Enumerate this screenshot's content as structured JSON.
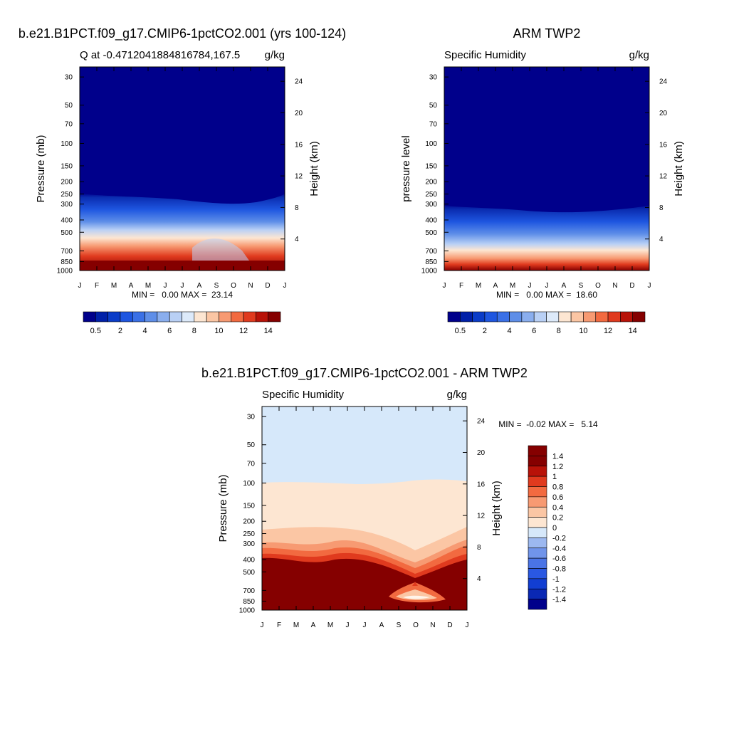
{
  "figure": {
    "panels": [
      {
        "id": "model",
        "main_title": "b.e21.B1PCT.f09_g17.CMIP6-1pctCO2.001 (yrs 100-124)",
        "left_label": "Q at -0.4712041884816784,167.5",
        "right_label": "g/kg",
        "ylabel": "Pressure (mb)",
        "ylabel_right": "Height (km)",
        "stats": "MIN =   0.00 MAX =  23.14"
      },
      {
        "id": "obs",
        "main_title": "ARM TWP2",
        "left_label": "Specific Humidity",
        "right_label": "g/kg",
        "ylabel": "pressure level",
        "ylabel_right": "Height (km)",
        "stats": "MIN =   0.00 MAX =  18.60"
      },
      {
        "id": "diff",
        "main_title": "b.e21.B1PCT.f09_g17.CMIP6-1pctCO2.001 - ARM TWP2",
        "left_label": "Specific Humidity",
        "right_label": "g/kg",
        "ylabel": "Pressure (mb)",
        "ylabel_right": "Height (km)",
        "stats": "MIN =  -0.02 MAX =   5.14"
      }
    ]
  },
  "chart_data": [
    {
      "type": "heatmap",
      "title": "b.e21.B1PCT.f09_g17.CMIP6-1pctCO2.001 (yrs 100-124)",
      "subtitle": "Q at -0.4712041884816784,167.5",
      "units": "g/kg",
      "xlabel": "",
      "ylabel": "Pressure (mb)",
      "ylabel_right": "Height (km)",
      "x_ticks": [
        "J",
        "F",
        "M",
        "A",
        "M",
        "J",
        "J",
        "A",
        "S",
        "O",
        "N",
        "D",
        "J"
      ],
      "y_ticks": [
        "30",
        "50",
        "70",
        "100",
        "150",
        "200",
        "250",
        "300",
        "400",
        "500",
        "700",
        "850",
        "1000"
      ],
      "y_scale": "log",
      "ylim": [
        1000,
        25
      ],
      "y_right_ticks": [
        "24",
        "20",
        "16",
        "12",
        "8",
        "4"
      ],
      "levels": [
        0.5,
        1,
        2,
        3,
        4,
        5,
        6,
        7,
        8,
        9,
        10,
        11,
        12,
        13,
        14
      ],
      "colorbar_labels": [
        "0.5",
        "2",
        "4",
        "6",
        "8",
        "10",
        "12",
        "14"
      ],
      "colors": [
        "#00008b",
        "#0020a8",
        "#0a3cc8",
        "#1e56e0",
        "#3a70e6",
        "#5e8ee8",
        "#8aaeee",
        "#b9d0f5",
        "#ddeafa",
        "#fde6d2",
        "#fbc6a4",
        "#f79a72",
        "#f26a40",
        "#e03a1e",
        "#b81208",
        "#850000"
      ],
      "approx_profile": [
        {
          "p": 1000,
          "q": 19
        },
        {
          "p": 850,
          "q": 14
        },
        {
          "p": 700,
          "q": 8
        },
        {
          "p": 500,
          "q": 3.5
        },
        {
          "p": 400,
          "q": 1.8
        },
        {
          "p": 300,
          "q": 0.6
        },
        {
          "p": 250,
          "q": 0.3
        },
        {
          "p": 100,
          "q": 0.01
        },
        {
          "p": 30,
          "q": 0
        }
      ],
      "min": 0.0,
      "max": 23.14
    },
    {
      "type": "heatmap",
      "title": "ARM TWP2",
      "subtitle": "Specific Humidity",
      "units": "g/kg",
      "xlabel": "",
      "ylabel": "pressure level",
      "ylabel_right": "Height (km)",
      "x_ticks": [
        "J",
        "F",
        "M",
        "A",
        "M",
        "J",
        "J",
        "A",
        "S",
        "O",
        "N",
        "D",
        "J"
      ],
      "y_ticks": [
        "30",
        "50",
        "70",
        "100",
        "150",
        "200",
        "250",
        "300",
        "400",
        "500",
        "700",
        "850",
        "1000"
      ],
      "y_scale": "log",
      "ylim": [
        1000,
        25
      ],
      "y_right_ticks": [
        "24",
        "20",
        "16",
        "12",
        "8",
        "4"
      ],
      "levels": [
        0.5,
        1,
        2,
        3,
        4,
        5,
        6,
        7,
        8,
        9,
        10,
        11,
        12,
        13,
        14
      ],
      "colorbar_labels": [
        "0.5",
        "2",
        "4",
        "6",
        "8",
        "10",
        "12",
        "14"
      ],
      "colors": [
        "#00008b",
        "#0020a8",
        "#0a3cc8",
        "#1e56e0",
        "#3a70e6",
        "#5e8ee8",
        "#8aaeee",
        "#b9d0f5",
        "#ddeafa",
        "#fde6d2",
        "#fbc6a4",
        "#f79a72",
        "#f26a40",
        "#e03a1e",
        "#b81208",
        "#850000"
      ],
      "approx_profile": [
        {
          "p": 1000,
          "q": 17
        },
        {
          "p": 850,
          "q": 12
        },
        {
          "p": 700,
          "q": 6.5
        },
        {
          "p": 500,
          "q": 2.5
        },
        {
          "p": 400,
          "q": 1.2
        },
        {
          "p": 300,
          "q": 0.4
        },
        {
          "p": 250,
          "q": 0.2
        },
        {
          "p": 100,
          "q": 0.01
        },
        {
          "p": 30,
          "q": 0
        }
      ],
      "min": 0.0,
      "max": 18.6
    },
    {
      "type": "heatmap",
      "title": "b.e21.B1PCT.f09_g17.CMIP6-1pctCO2.001 - ARM TWP2",
      "subtitle": "Specific Humidity",
      "units": "g/kg",
      "xlabel": "",
      "ylabel": "Pressure (mb)",
      "ylabel_right": "Height (km)",
      "x_ticks": [
        "J",
        "F",
        "M",
        "A",
        "M",
        "J",
        "J",
        "A",
        "S",
        "O",
        "N",
        "D",
        "J"
      ],
      "y_ticks": [
        "30",
        "50",
        "70",
        "100",
        "150",
        "200",
        "250",
        "300",
        "400",
        "500",
        "700",
        "850",
        "1000"
      ],
      "y_scale": "log",
      "ylim": [
        1000,
        25
      ],
      "y_right_ticks": [
        "24",
        "20",
        "16",
        "12",
        "8",
        "4"
      ],
      "levels": [
        -1.4,
        -1.2,
        -1,
        -0.8,
        -0.6,
        -0.4,
        -0.2,
        0,
        0.2,
        0.4,
        0.6,
        0.8,
        1,
        1.2,
        1.4
      ],
      "colorbar_labels": [
        "1.4",
        "1.2",
        "1",
        "0.8",
        "0.6",
        "0.4",
        "0.2",
        "0",
        "-0.2",
        "-0.4",
        "-0.6",
        "-0.8",
        "-1",
        "-1.2",
        "-1.4"
      ],
      "colors": [
        "#00008b",
        "#0a28b4",
        "#123ed2",
        "#2a58e2",
        "#4a74e6",
        "#7094ea",
        "#9cb8f0",
        "#d6e8fa",
        "#fde6d2",
        "#fbc6a4",
        "#f79a72",
        "#f26a40",
        "#e03a1e",
        "#b81208",
        "#850000"
      ],
      "approx_profile": [
        {
          "p": 1000,
          "q": 3
        },
        {
          "p": 850,
          "q": 2
        },
        {
          "p": 500,
          "q": 1.6
        },
        {
          "p": 400,
          "q": 1.2
        },
        {
          "p": 300,
          "q": 0.5
        },
        {
          "p": 250,
          "q": 0.3
        },
        {
          "p": 200,
          "q": 0.15
        },
        {
          "p": 100,
          "q": 0.05
        },
        {
          "p": 30,
          "q": -0.1
        }
      ],
      "min": -0.02,
      "max": 5.14
    }
  ]
}
